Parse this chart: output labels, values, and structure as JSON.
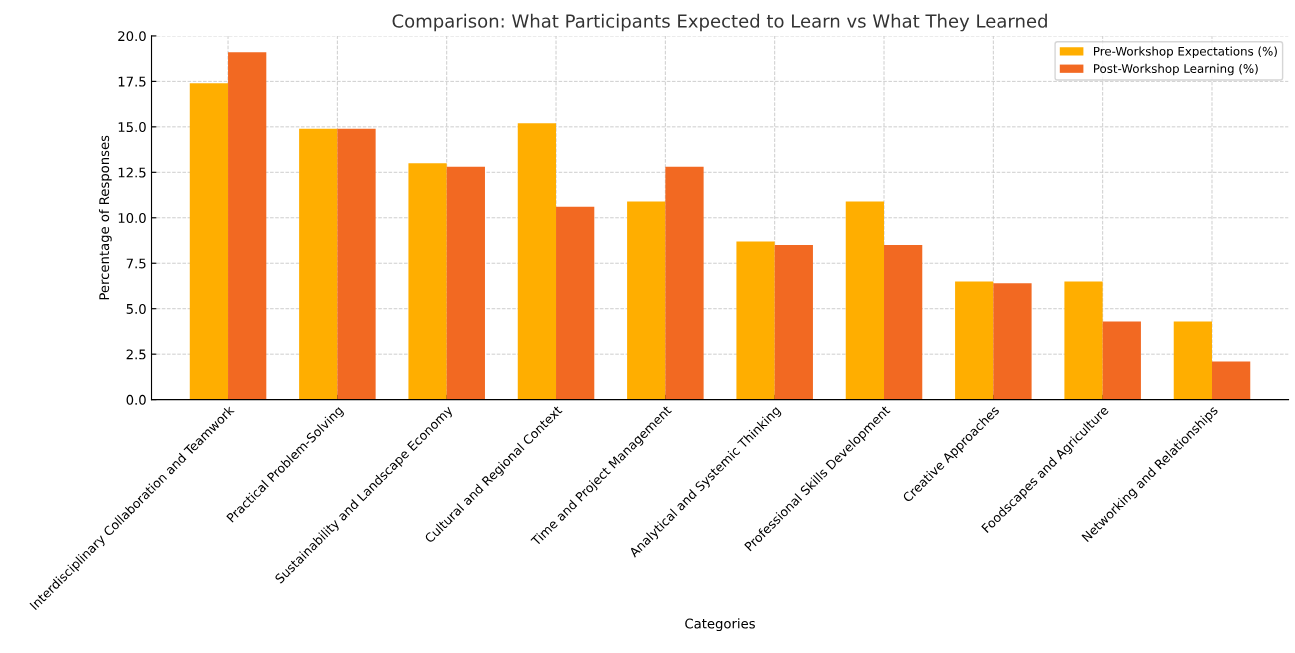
{
  "chart_data": {
    "type": "bar",
    "title": "Comparison: What Participants Expected to Learn vs What They Learned",
    "xlabel": "Categories",
    "ylabel": "Percentage of Responses",
    "categories": [
      "Interdisciplinary Collaboration and Teamwork",
      "Practical Problem-Solving",
      "Sustainability and Landscape Economy",
      "Cultural and Regional Context",
      "Time and Project Management",
      "Analytical and Systemic Thinking",
      "Professional Skills Development",
      "Creative Approaches",
      "Foodscapes and Agriculture",
      "Networking and Relationships"
    ],
    "series": [
      {
        "name": "Pre-Workshop Expectations (%)",
        "color": "#ffae00",
        "values": [
          17.4,
          14.9,
          13.0,
          15.2,
          10.9,
          8.7,
          10.9,
          6.5,
          6.5,
          4.3
        ]
      },
      {
        "name": "Post-Workshop Learning (%)",
        "color": "#f26922",
        "values": [
          19.1,
          14.9,
          12.8,
          10.6,
          12.8,
          8.5,
          8.5,
          6.4,
          4.3,
          2.1
        ]
      }
    ],
    "ylim": [
      0,
      20
    ],
    "yticks": [
      {
        "value": 0,
        "label": "0.0"
      },
      {
        "value": 2.5,
        "label": "2.5"
      },
      {
        "value": 5,
        "label": "5.0"
      },
      {
        "value": 7.5,
        "label": "7.5"
      },
      {
        "value": 10,
        "label": "10.0"
      },
      {
        "value": 12.5,
        "label": "12.5"
      },
      {
        "value": 15,
        "label": "15.0"
      },
      {
        "value": 17.5,
        "label": "17.5"
      },
      {
        "value": 20,
        "label": "20.0"
      }
    ],
    "grid": true,
    "legend": "top right"
  }
}
